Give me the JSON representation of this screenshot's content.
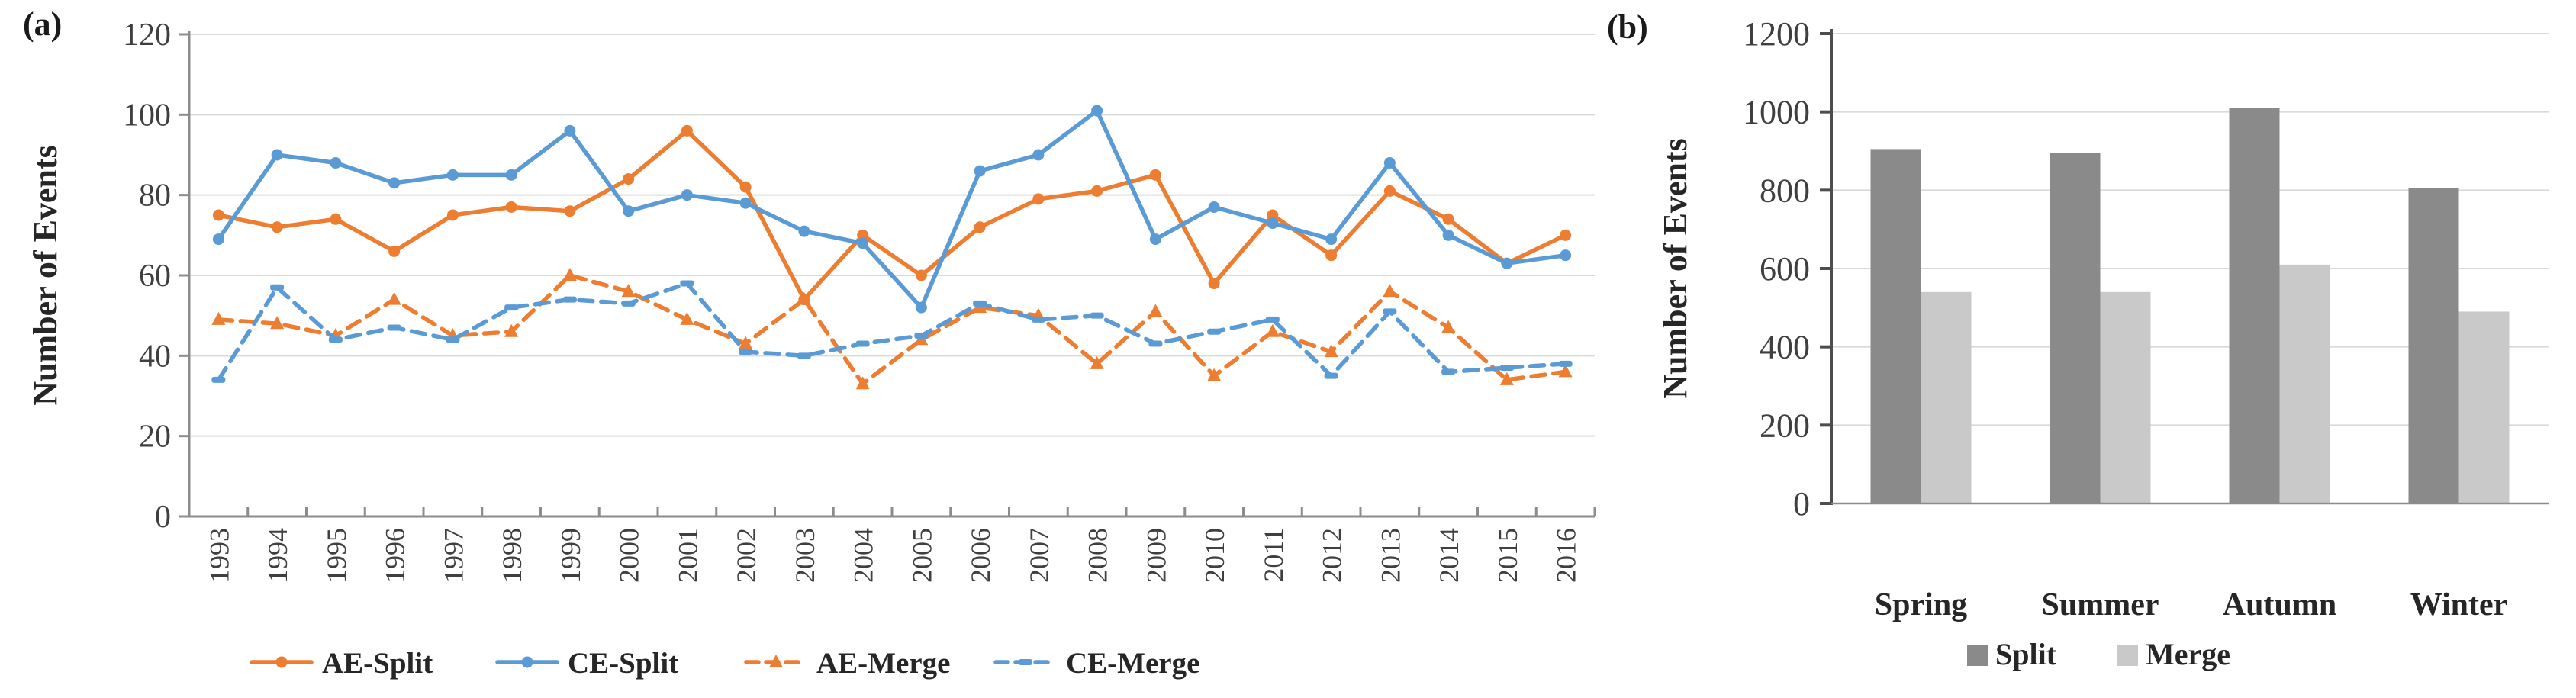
{
  "figure": {
    "panel_a_label": "(a)",
    "panel_b_label": "(b)"
  },
  "colors": {
    "orange": "#ED7D31",
    "blue": "#5B9BD5",
    "bar_dark": "#8A8A8A",
    "bar_light": "#C9C9C9",
    "gridline": "#D9D9D9",
    "axis": "#8C8C8C",
    "axis_dark": "#4D4D4D",
    "tick_text": "#3F3F3F",
    "label_text": "#262626"
  },
  "chart_data": [
    {
      "type": "line",
      "panel": "a",
      "title": "",
      "xlabel": "",
      "ylabel": "Number of Events",
      "ylim": [
        0,
        120
      ],
      "ytick_step": 20,
      "grid": true,
      "legend_position": "bottom",
      "x": [
        1993,
        1994,
        1995,
        1996,
        1997,
        1998,
        1999,
        2000,
        2001,
        2002,
        2003,
        2004,
        2005,
        2006,
        2007,
        2008,
        2009,
        2010,
        2011,
        2012,
        2013,
        2014,
        2015,
        2016
      ],
      "series": [
        {
          "name": "AE-Split",
          "color_key": "orange",
          "line_style": "solid",
          "marker": "circle",
          "values": [
            75,
            72,
            74,
            66,
            75,
            77,
            76,
            84,
            96,
            82,
            54,
            70,
            60,
            72,
            79,
            81,
            85,
            58,
            75,
            65,
            81,
            74,
            63,
            70
          ]
        },
        {
          "name": "CE-Split",
          "color_key": "blue",
          "line_style": "solid",
          "marker": "circle",
          "values": [
            69,
            90,
            88,
            83,
            85,
            85,
            96,
            76,
            80,
            78,
            71,
            68,
            52,
            86,
            90,
            101,
            69,
            77,
            73,
            69,
            88,
            70,
            63,
            65
          ]
        },
        {
          "name": "AE-Merge",
          "color_key": "orange",
          "line_style": "dashed",
          "marker": "triangle",
          "values": [
            49,
            48,
            45,
            54,
            45,
            46,
            60,
            56,
            49,
            43,
            54,
            33,
            44,
            52,
            50,
            38,
            51,
            35,
            46,
            41,
            56,
            47,
            34,
            36
          ]
        },
        {
          "name": "CE-Merge",
          "color_key": "blue",
          "line_style": "dashed",
          "marker": "dash",
          "values": [
            34,
            57,
            44,
            47,
            44,
            52,
            54,
            53,
            58,
            41,
            40,
            43,
            45,
            53,
            49,
            50,
            43,
            46,
            49,
            35,
            51,
            36,
            37,
            38
          ]
        }
      ]
    },
    {
      "type": "bar",
      "panel": "b",
      "title": "",
      "xlabel": "",
      "ylabel": "Number  of Events",
      "ylim": [
        0,
        1200
      ],
      "ytick_step": 200,
      "grid": true,
      "legend_position": "bottom",
      "categories": [
        "Spring",
        "Summer",
        "Autumn",
        "Winter"
      ],
      "series": [
        {
          "name": "Split",
          "color_key": "bar_dark",
          "values": [
            905,
            895,
            1010,
            805
          ]
        },
        {
          "name": "Merge",
          "color_key": "bar_light",
          "values": [
            540,
            540,
            610,
            490
          ]
        }
      ]
    }
  ]
}
